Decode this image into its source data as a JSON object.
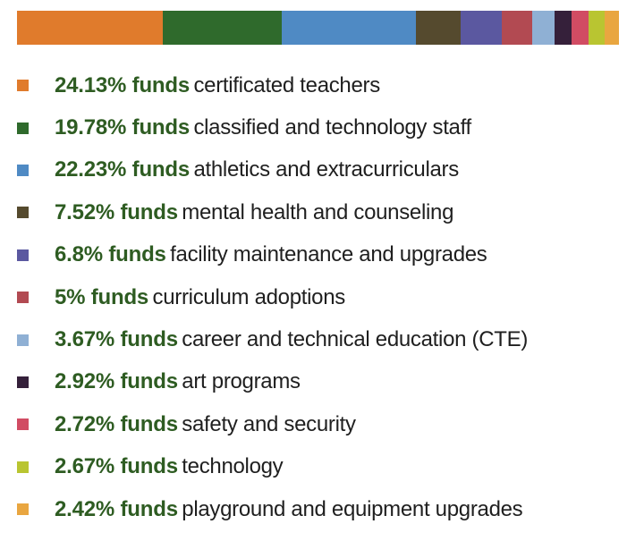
{
  "chart_data": {
    "type": "bar",
    "stacked": true,
    "orientation": "horizontal",
    "title": "",
    "xlabel": "",
    "ylabel": "",
    "value_suffix": "% funds",
    "series": [
      {
        "label": "certificated teachers",
        "value": 24.13,
        "value_text": "24.13% funds",
        "color": "#e07b2c"
      },
      {
        "label": "classified and technology staff",
        "value": 19.78,
        "value_text": "19.78% funds",
        "color": "#2f6a2c"
      },
      {
        "label": "athletics and extracurriculars",
        "value": 22.23,
        "value_text": "22.23% funds",
        "color": "#4f8ac4"
      },
      {
        "label": "mental health and counseling",
        "value": 7.52,
        "value_text": "7.52% funds",
        "color": "#554a2e"
      },
      {
        "label": "facility maintenance and upgrades",
        "value": 6.8,
        "value_text": "6.8% funds",
        "color": "#5b58a0"
      },
      {
        "label": "curriculum adoptions",
        "value": 5,
        "value_text": "5% funds",
        "color": "#b24a52"
      },
      {
        "label": "career and technical education (CTE)",
        "value": 3.67,
        "value_text": "3.67% funds",
        "color": "#8fb0d4"
      },
      {
        "label": "art programs",
        "value": 2.92,
        "value_text": "2.92% funds",
        "color": "#35203a"
      },
      {
        "label": "safety and security",
        "value": 2.72,
        "value_text": "2.72% funds",
        "color": "#d14c63"
      },
      {
        "label": "technology",
        "value": 2.67,
        "value_text": "2.67% funds",
        "color": "#b9c531"
      },
      {
        "label": "playground and equipment upgrades",
        "value": 2.42,
        "value_text": "2.42% funds",
        "color": "#e9a640"
      }
    ]
  }
}
